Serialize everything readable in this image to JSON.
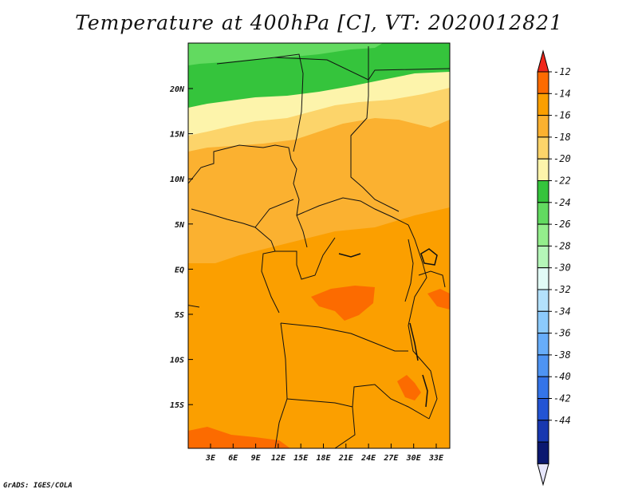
{
  "title": "Temperature at 400hPa [C], VT: 2020012821",
  "credit": "GrADS: IGES/COLA",
  "map": {
    "lat_labels": [
      "20N",
      "15N",
      "10N",
      "5N",
      "EQ",
      "5S",
      "10S",
      "15S"
    ],
    "lon_labels": [
      "3E",
      "6E",
      "9E",
      "12E",
      "15E",
      "18E",
      "21E",
      "24E",
      "27E",
      "30E",
      "33E"
    ]
  },
  "colorbar": {
    "labels": [
      "-12",
      "-14",
      "-16",
      "-18",
      "-20",
      "-22",
      "-24",
      "-26",
      "-28",
      "-30",
      "-32",
      "-34",
      "-36",
      "-38",
      "-40",
      "-42",
      "-44"
    ],
    "colors": [
      "#f0261b",
      "#fc6b00",
      "#fb9f00",
      "#fbb130",
      "#fcd46a",
      "#fdf4ab",
      "#35c43c",
      "#62da60",
      "#94ee8c",
      "#b5f6b8",
      "#e1fbf6",
      "#b3e1fc",
      "#8ccafc",
      "#67adfa",
      "#4e94f3",
      "#3474e8",
      "#2354d4",
      "#1838b0",
      "#0b1870",
      "#e6e6fc"
    ]
  }
}
